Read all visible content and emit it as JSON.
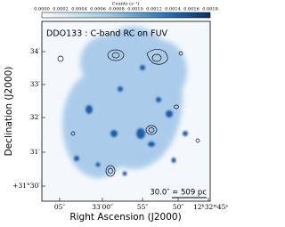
{
  "colorbar": {
    "label": "Counts (s⁻¹)",
    "ticks": [
      "0.0000",
      "0.0002",
      "0.0004",
      "0.0006",
      "0.0008",
      "0.0010",
      "0.0012",
      "0.0014",
      "0.0016",
      "0.0018"
    ]
  },
  "image": {
    "annotation": "DDO133 : C-band RC on FUV",
    "scale_bar": "30.0″ = 509 pc"
  },
  "x_axis": {
    "label": "Right Ascension (J2000)",
    "ticks": [
      "05″",
      "33′00″",
      "55″",
      "50″",
      "12ʰ32ᵐ45ˢ"
    ]
  },
  "y_axis": {
    "label": "Declination (J2000)",
    "ticks": [
      "34′",
      "33′",
      "32′",
      "31′",
      "+31°30′"
    ]
  }
}
